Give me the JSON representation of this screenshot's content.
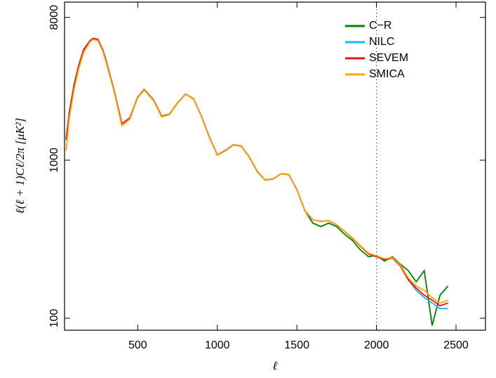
{
  "chart_data": {
    "type": "line",
    "x_label": "ℓ",
    "y_label": "ℓ(ℓ + 1)Cℓ/2π   [μK²]",
    "log_y": true,
    "xlim": [
      40,
      2685
    ],
    "ylim": [
      84,
      10000
    ],
    "xticks": [
      500,
      1000,
      1500,
      2000,
      2500
    ],
    "yticks": [
      100,
      1000,
      8000
    ],
    "vline": 2000,
    "legend": "upper right",
    "x": [
      50,
      70,
      100,
      130,
      160,
      200,
      220,
      250,
      280,
      300,
      350,
      400,
      450,
      500,
      540,
      600,
      650,
      700,
      750,
      800,
      850,
      900,
      950,
      1000,
      1050,
      1100,
      1150,
      1200,
      1250,
      1300,
      1350,
      1400,
      1450,
      1500,
      1550,
      1600,
      1650,
      1700,
      1750,
      1800,
      1850,
      1900,
      1950,
      2000,
      2050,
      2100,
      2150,
      2200,
      2250,
      2300,
      2350,
      2400,
      2450
    ],
    "series": [
      {
        "name": "C−R",
        "color": "#008000",
        "values": [
          1350,
          2000,
          3000,
          4000,
          5000,
          5700,
          5900,
          5800,
          5000,
          4300,
          2800,
          1700,
          1850,
          2500,
          2800,
          2400,
          1900,
          1950,
          2300,
          2620,
          2450,
          1900,
          1400,
          1080,
          1150,
          1250,
          1230,
          1050,
          850,
          750,
          760,
          820,
          810,
          650,
          480,
          400,
          380,
          400,
          380,
          340,
          310,
          270,
          245,
          250,
          230,
          245,
          220,
          200,
          170,
          200,
          90,
          140,
          160
        ]
      },
      {
        "name": "NILC",
        "color": "#1eb4f0",
        "values": [
          1350,
          2000,
          3000,
          4000,
          5000,
          5700,
          5900,
          5800,
          5000,
          4300,
          2800,
          1700,
          1850,
          2500,
          2800,
          2400,
          1900,
          1950,
          2300,
          2620,
          2450,
          1900,
          1400,
          1080,
          1150,
          1250,
          1230,
          1050,
          850,
          750,
          760,
          820,
          810,
          650,
          480,
          420,
          410,
          415,
          390,
          355,
          320,
          285,
          255,
          245,
          235,
          240,
          215,
          175,
          150,
          135,
          125,
          115,
          115
        ]
      },
      {
        "name": "SEVEM",
        "color": "#e8141a",
        "values": [
          1350,
          2000,
          3000,
          4000,
          5000,
          5700,
          5900,
          5800,
          5000,
          4300,
          2800,
          1700,
          1850,
          2500,
          2800,
          2400,
          1900,
          1950,
          2300,
          2620,
          2450,
          1900,
          1400,
          1080,
          1150,
          1250,
          1230,
          1050,
          850,
          750,
          760,
          820,
          810,
          650,
          480,
          420,
          410,
          415,
          390,
          355,
          320,
          285,
          255,
          245,
          235,
          240,
          215,
          175,
          155,
          140,
          130,
          120,
          125
        ]
      },
      {
        "name": "SMICA",
        "color": "#ffa500",
        "values": [
          1150,
          1850,
          2800,
          3800,
          4800,
          5600,
          5800,
          5700,
          4900,
          4200,
          2750,
          1650,
          1820,
          2480,
          2780,
          2380,
          1880,
          1940,
          2290,
          2610,
          2440,
          1890,
          1390,
          1075,
          1145,
          1245,
          1225,
          1045,
          845,
          748,
          758,
          818,
          808,
          648,
          478,
          420,
          410,
          415,
          390,
          355,
          322,
          287,
          258,
          248,
          238,
          242,
          218,
          180,
          160,
          150,
          135,
          125,
          130
        ]
      }
    ]
  }
}
